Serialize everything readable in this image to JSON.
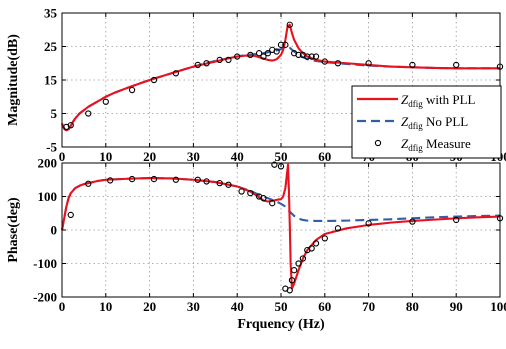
{
  "chart_data": [
    {
      "type": "line",
      "ylabel": "Magnitude(dB)",
      "xlim": [
        0,
        100
      ],
      "ylim": [
        -5,
        35
      ],
      "xticks": [
        0,
        10,
        20,
        30,
        40,
        50,
        60,
        70,
        80,
        90,
        100
      ],
      "yticks": [
        -5,
        5,
        15,
        25,
        35
      ],
      "grid": true,
      "legend": {
        "placement": "bottom-right",
        "entries": [
          {
            "main": "Z",
            "sub": "dfig",
            "text": " with PLL",
            "style": "solid",
            "color": "#e8121e"
          },
          {
            "main": "Z",
            "sub": "dfig",
            "text": " No PLL",
            "style": "dashed",
            "color": "#2f5fa8"
          },
          {
            "main": "Z",
            "sub": "dfig",
            "text": " Measure",
            "style": "marker",
            "color": "#000000"
          }
        ]
      },
      "series": [
        {
          "key": "with_pll",
          "style": "solid",
          "color": "#e8121e",
          "x": [
            0,
            0.3,
            0.6,
            1,
            1.5,
            2,
            2.5,
            3,
            4,
            5,
            6,
            8,
            10,
            12,
            15,
            20,
            25,
            30,
            35,
            38,
            40,
            42,
            44,
            45,
            46,
            47,
            48,
            49,
            50,
            50.5,
            51,
            51.5,
            52,
            52.5,
            53,
            54,
            55,
            56,
            58,
            60,
            65,
            70,
            75,
            80,
            85,
            90,
            95,
            100
          ],
          "y": [
            2,
            1,
            0.3,
            0,
            0.3,
            1.3,
            2.5,
            3.5,
            5,
            6,
            7,
            8.5,
            10,
            11.2,
            12.7,
            15,
            17,
            19,
            20.5,
            21.5,
            22,
            22.3,
            22.2,
            21.8,
            21.4,
            21,
            20.8,
            21.2,
            22.5,
            24,
            27,
            31,
            31.5,
            29,
            27,
            24.5,
            23,
            22,
            21,
            20.5,
            20,
            19.5,
            19,
            18.8,
            18.6,
            18.5,
            18.5,
            18.5
          ]
        },
        {
          "key": "no_pll",
          "style": "dashed",
          "color": "#2f5fa8",
          "x": [
            0,
            0.3,
            0.6,
            1,
            1.5,
            2,
            2.5,
            3,
            4,
            5,
            6,
            8,
            10,
            12,
            15,
            20,
            25,
            30,
            35,
            40,
            42,
            44,
            45,
            46,
            48,
            50,
            51,
            52,
            53,
            54,
            55,
            56,
            58,
            60,
            65,
            70,
            75,
            80,
            85,
            90,
            95,
            100
          ],
          "y": [
            2,
            1,
            0.3,
            0,
            0.3,
            1.3,
            2.5,
            3.5,
            5,
            6,
            7,
            8.5,
            10,
            11.2,
            12.7,
            15,
            17,
            19,
            20.7,
            22,
            22.5,
            22.7,
            22.8,
            23,
            23.5,
            24.2,
            24.7,
            24.6,
            23.5,
            22.5,
            21.8,
            21.2,
            20.7,
            20.3,
            19.8,
            19.3,
            19,
            18.8,
            18.6,
            18.5,
            18.5,
            18.5
          ]
        },
        {
          "key": "measure",
          "style": "marker",
          "color": "#000000",
          "x": [
            1,
            2,
            6,
            10,
            16,
            21,
            26,
            31,
            33,
            36,
            38,
            40,
            43,
            45,
            46,
            47,
            48,
            49,
            50,
            51,
            52,
            53,
            54,
            55,
            56,
            57,
            58,
            60,
            63,
            70,
            80,
            90,
            100
          ],
          "y": [
            1,
            1.5,
            5,
            8.5,
            12,
            15,
            17,
            19.5,
            20,
            21,
            21,
            22,
            22.5,
            23,
            22,
            23,
            24,
            23.5,
            25.5,
            25.5,
            31.5,
            23,
            22.5,
            22.5,
            22,
            22,
            22,
            20.5,
            20,
            20,
            19.5,
            19.5,
            19
          ]
        }
      ]
    },
    {
      "type": "line",
      "ylabel": "Phase(deg)",
      "xlabel": "Frquency (Hz)",
      "xlim": [
        0,
        100
      ],
      "ylim": [
        -200,
        200
      ],
      "xticks": [
        0,
        10,
        20,
        30,
        40,
        50,
        60,
        70,
        80,
        90,
        100
      ],
      "yticks": [
        -200,
        -100,
        0,
        100,
        200
      ],
      "grid": true,
      "series": [
        {
          "key": "with_pll",
          "style": "solid",
          "color": "#e8121e",
          "x": [
            0,
            0.5,
            1,
            1.5,
            2,
            3,
            4,
            5,
            6,
            8,
            10,
            15,
            20,
            25,
            30,
            35,
            40,
            43,
            45,
            46,
            47,
            48,
            49,
            50,
            50.5,
            51,
            51.3,
            51.6,
            51.8,
            52,
            52.2,
            52.5,
            53,
            54,
            55,
            56,
            58,
            60,
            65,
            70,
            75,
            80,
            85,
            90,
            95,
            100
          ],
          "y": [
            0,
            35,
            70,
            95,
            110,
            125,
            132,
            137,
            140,
            146,
            150,
            153,
            155,
            154,
            150,
            143,
            130,
            115,
            98,
            88,
            85,
            87,
            90,
            92,
            100,
            125,
            160,
            195,
            120,
            20,
            -100,
            -175,
            -160,
            -120,
            -85,
            -60,
            -30,
            -12,
            5,
            15,
            22,
            27,
            31,
            35,
            38,
            40
          ]
        },
        {
          "key": "no_pll",
          "style": "dashed",
          "color": "#2f5fa8",
          "x": [
            0,
            0.5,
            1,
            1.5,
            2,
            3,
            4,
            5,
            6,
            8,
            10,
            15,
            20,
            25,
            30,
            35,
            40,
            43,
            45,
            47,
            49,
            50,
            51,
            52,
            53,
            54,
            55,
            56,
            58,
            60,
            65,
            70,
            75,
            80,
            85,
            90,
            95,
            100
          ],
          "y": [
            0,
            35,
            70,
            95,
            110,
            125,
            132,
            137,
            140,
            146,
            150,
            153,
            155,
            154,
            150,
            143,
            130,
            117,
            105,
            95,
            85,
            78,
            70,
            55,
            42,
            34,
            30,
            28,
            27,
            27,
            28,
            30,
            32,
            35,
            38,
            40,
            42,
            43
          ]
        },
        {
          "key": "measure",
          "style": "marker",
          "color": "#000000",
          "x": [
            2,
            6,
            11,
            16,
            21,
            26,
            31,
            33,
            36,
            38,
            41,
            43,
            45,
            46,
            48,
            48.5,
            50,
            51,
            52,
            52.5,
            53,
            54,
            55,
            56,
            57,
            58,
            60,
            63,
            70,
            80,
            90,
            100
          ],
          "y": [
            45,
            138,
            148,
            152,
            152,
            150,
            150,
            145,
            140,
            135,
            115,
            110,
            100,
            95,
            80,
            195,
            190,
            -175,
            -180,
            -150,
            -120,
            -100,
            -85,
            -60,
            -55,
            -40,
            -25,
            5,
            20,
            25,
            30,
            35
          ]
        }
      ]
    }
  ]
}
